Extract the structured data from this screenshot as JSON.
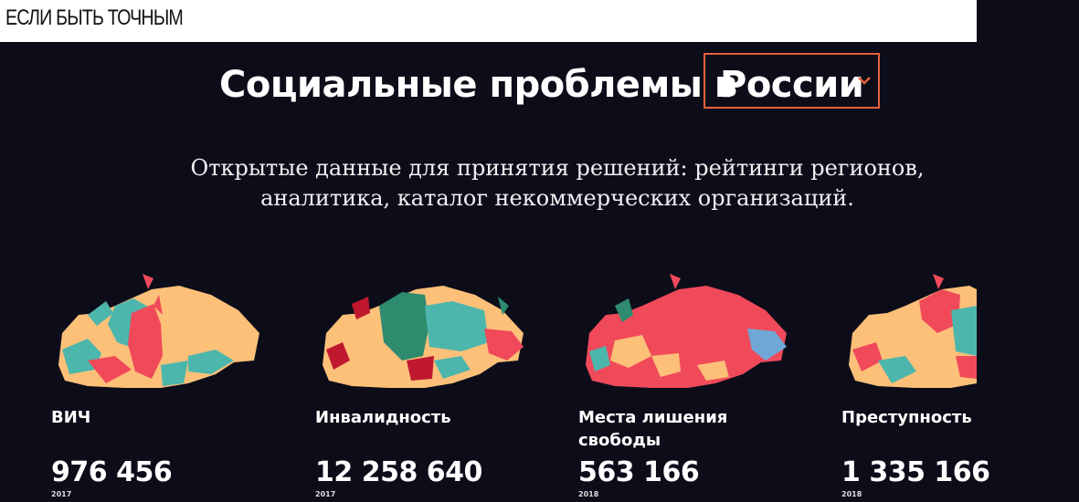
{
  "site": {
    "logo": "ЕСЛИ БЫТЬ ТОЧНЫМ"
  },
  "hero": {
    "headline": "Социальные проблемы в",
    "country_select": {
      "value": "России"
    },
    "subtitle_line1": "Открытые данные для принятия решений: рейтинги регионов,",
    "subtitle_line2": "аналитика, каталог некоммерческих организаций."
  },
  "colors": {
    "accent": "#e8603c",
    "background": "#0d0d1a",
    "map_red": "#f04a5a",
    "map_yellow": "#fdc079",
    "map_teal": "#4db6ac",
    "map_green": "#2e8b6e",
    "map_blue": "#6fa8d6",
    "map_darkred": "#c0182f"
  },
  "cards": [
    {
      "title": "ВИЧ",
      "value": "976 456",
      "year": "2017",
      "icon": "russia-map-hiv"
    },
    {
      "title": "Инвалидность",
      "value": "12 258 640",
      "year": "2017",
      "icon": "russia-map-disability"
    },
    {
      "title": "Места лишения свободы",
      "value": "563 166",
      "year": "2018",
      "icon": "russia-map-prisons"
    },
    {
      "title": "Преступность",
      "value": "1 335 166",
      "year": "2018",
      "icon": "russia-map-crime"
    }
  ]
}
